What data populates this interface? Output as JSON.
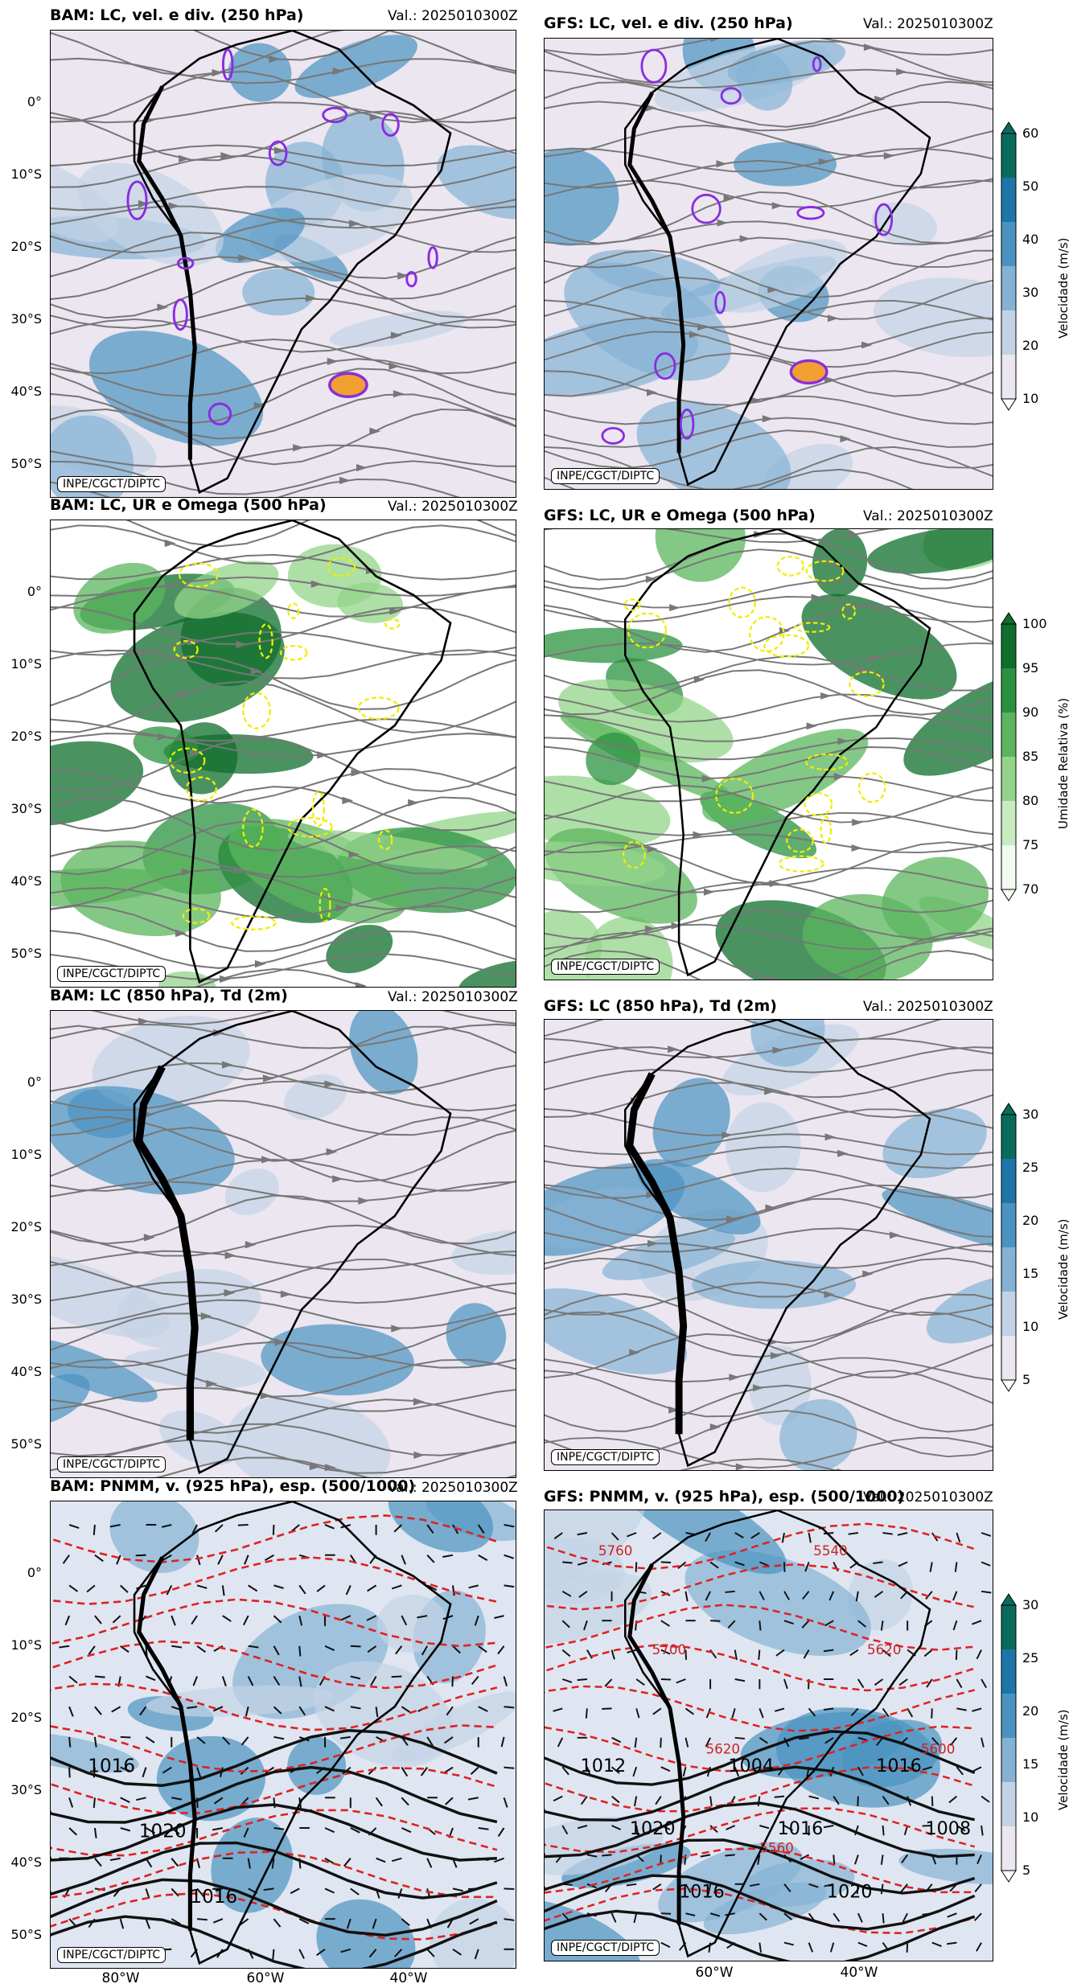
{
  "valid": "Val.: 2025010300Z",
  "credit": "INPE/CGCT/DIPTC",
  "lat_labels": [
    "0°",
    "10°S",
    "20°S",
    "30°S",
    "40°S",
    "50°S"
  ],
  "lon_labels": [
    "80°W",
    "60°W",
    "40°W"
  ],
  "rows": [
    {
      "left_title": "BAM: LC, vel. e div. (250 hPa)",
      "right_title": "GFS: LC, vel. e div. (250 hPa)",
      "field": "wind",
      "colorbar": {
        "label": "Velocidade (m/s)",
        "ticks": [
          "10",
          "20",
          "30",
          "40",
          "50",
          "60"
        ],
        "colors": [
          "#ebe6f0",
          "#c3d3e6",
          "#85b2d4",
          "#4a93c0",
          "#1f75a8",
          "#0a6b5c"
        ]
      }
    },
    {
      "left_title": "BAM: LC, UR e Omega (500 hPa)",
      "right_title": "GFS: LC, UR e Omega (500 hPa)",
      "field": "humidity",
      "colorbar": {
        "label": "Umidade Relativa (%)",
        "ticks": [
          "70",
          "75",
          "80",
          "85",
          "90",
          "95",
          "100"
        ],
        "colors": [
          "#f2fbef",
          "#c8ecc0",
          "#93d48a",
          "#5bb55e",
          "#2b9140",
          "#0f6e2c"
        ]
      }
    },
    {
      "left_title": "BAM: LC (850 hPa), Td (2m)",
      "right_title": "GFS: LC (850 hPa), Td (2m)",
      "field": "wind",
      "colorbar": {
        "label": "Velocidade (m/s)",
        "ticks": [
          "5",
          "10",
          "15",
          "20",
          "25",
          "30"
        ],
        "colors": [
          "#ebe6f0",
          "#c3d3e6",
          "#85b2d4",
          "#4a93c0",
          "#1f75a8",
          "#0a6b5c"
        ]
      }
    },
    {
      "left_title": "BAM: PNMM, v. (925 hPa), esp. (500/1000)",
      "right_title": "GFS: PNMM, v. (925 hPa), esp. (500/1000)",
      "field": "pressure",
      "left_isobars": [
        "1016",
        "1020",
        "1016"
      ],
      "right_isobars": [
        "1012",
        "1020",
        "1016",
        "1004",
        "1016",
        "1020",
        "1016",
        "1008"
      ],
      "right_thickness": [
        "5760",
        "5700",
        "5620",
        "5560",
        "5540",
        "5620",
        "5600"
      ],
      "colorbar": {
        "label": "Velocidade (m/s)",
        "ticks": [
          "5",
          "10",
          "15",
          "20",
          "25",
          "30"
        ],
        "colors": [
          "#ebe6f0",
          "#c3d3e6",
          "#85b2d4",
          "#4a93c0",
          "#1f75a8",
          "#0a6b5c"
        ]
      }
    }
  ]
}
